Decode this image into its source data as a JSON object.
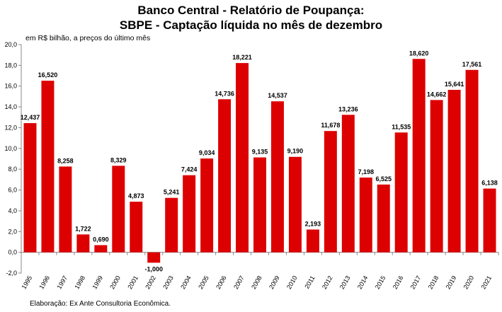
{
  "chart_data": {
    "type": "bar",
    "title": "Banco Central - Relatório de Poupança:",
    "subtitle": "SBPE - Captação líquida no mês de dezembro",
    "ylabel": "em R$ bilhão, a preços do último mês",
    "xlabel": "",
    "categories": [
      "1995",
      "1996",
      "1997",
      "1998",
      "1999",
      "2000",
      "2001",
      "2002",
      "2003",
      "2004",
      "2005",
      "2006",
      "2007",
      "2008",
      "2009",
      "2010",
      "2011",
      "2012",
      "2013",
      "2014",
      "2015",
      "2016",
      "2017",
      "2018",
      "2019",
      "2020",
      "2021"
    ],
    "values": [
      12.437,
      16.52,
      8.258,
      1.722,
      0.69,
      8.329,
      4.873,
      -1.0,
      5.241,
      7.424,
      9.034,
      14.736,
      18.221,
      9.135,
      14.537,
      9.19,
      2.193,
      11.678,
      13.236,
      7.198,
      6.525,
      11.535,
      18.62,
      14.662,
      15.641,
      17.561,
      6.138
    ],
    "value_labels": [
      "12,437",
      "16,520",
      "8,258",
      "1,722",
      "0,690",
      "8,329",
      "4,873",
      "-1,000",
      "5,241",
      "7,424",
      "9,034",
      "14,736",
      "18,221",
      "9,135",
      "14,537",
      "9,190",
      "2,193",
      "11,678",
      "13,236",
      "7,198",
      "6,525",
      "11,535",
      "18,620",
      "14,662",
      "15,641",
      "17,561",
      "6,138"
    ],
    "yticks": [
      "-2,0",
      "0,0",
      "2,0",
      "4,0",
      "6,0",
      "8,0",
      "10,0",
      "12,0",
      "14,0",
      "16,0",
      "18,0",
      "20,0"
    ],
    "ylim": [
      -2,
      20
    ],
    "bar_color": "#dd0000",
    "grid": false,
    "source": "Elaboração: Ex Ante Consultoria Econômica."
  }
}
